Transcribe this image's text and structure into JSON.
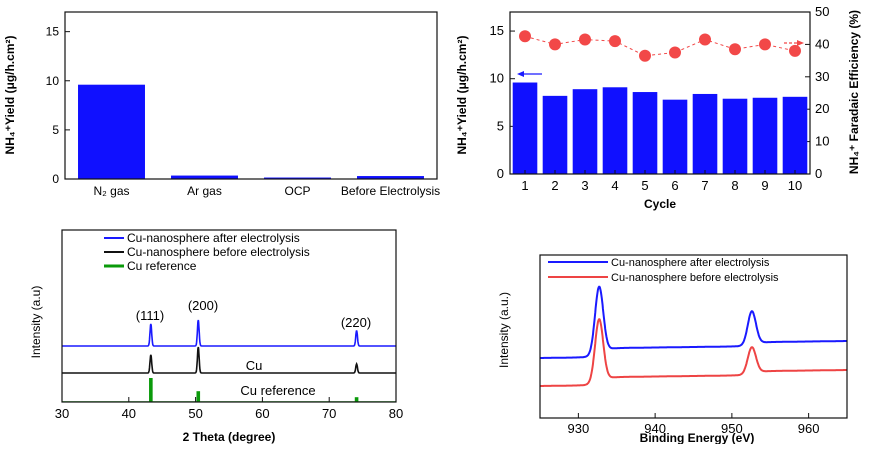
{
  "colors": {
    "bar": "#1010ff",
    "faradaic": "#f24848",
    "after": "#1a1aff",
    "before": "#111111",
    "reference": "#0a9a0a",
    "xps_before": "#ee4444",
    "axis": "#111111"
  },
  "chart_data": [
    {
      "id": "a",
      "type": "bar",
      "title": "",
      "categories": [
        "N₂ gas",
        "Ar gas",
        "OCP",
        "Before Electrolysis"
      ],
      "values": [
        9.6,
        0.35,
        0.15,
        0.3
      ],
      "xlabel": "",
      "ylabel": "NH₄⁺Yield (μg/h.cm²)",
      "ylim": [
        0,
        17
      ],
      "yticks": [
        "0",
        "5",
        "10",
        "15"
      ],
      "grid": false
    },
    {
      "id": "b",
      "type": "bar",
      "categories": [
        "1",
        "2",
        "3",
        "4",
        "5",
        "6",
        "7",
        "8",
        "9",
        "10"
      ],
      "xlabel": "Cycle",
      "ylabel": "NH₄⁺Yield (μg/h.cm²)",
      "ylim": [
        0,
        17
      ],
      "yticks": [
        "0",
        "5",
        "10",
        "15"
      ],
      "y2label": "NH₄⁺ Faradaic Efficiency (%)",
      "y2lim": [
        0,
        50
      ],
      "y2ticks": [
        "0",
        "10",
        "20",
        "30",
        "40",
        "50"
      ],
      "series": [
        {
          "axis": "left",
          "type": "bar",
          "values": [
            9.6,
            8.2,
            8.9,
            9.1,
            8.6,
            7.8,
            8.4,
            7.9,
            8.0,
            8.1
          ]
        },
        {
          "axis": "right",
          "type": "line-marker",
          "values": [
            42.5,
            40.0,
            41.5,
            41.0,
            36.5,
            37.5,
            41.5,
            38.5,
            40.0,
            38.0
          ]
        }
      ],
      "grid": false
    },
    {
      "id": "c",
      "type": "line",
      "xlabel": "2 Theta (degree)",
      "ylabel": "Intensity (a.u)",
      "xlim": [
        30,
        80
      ],
      "xticks": [
        "30",
        "40",
        "50",
        "60",
        "70",
        "80"
      ],
      "legend": {
        "placement": "top",
        "entries": [
          "Cu-nanosphere after electrolysis",
          "Cu-nanosphere before electrolysis",
          "Cu reference"
        ]
      },
      "annotations": [
        "(111)",
        "(200)",
        "(220)",
        "Cu",
        "Cu reference"
      ],
      "series": [
        {
          "name": "Cu-nanosphere after electrolysis",
          "peaks": [
            [
              43.3,
              0.85
            ],
            [
              50.4,
              1.0
            ],
            [
              74.1,
              0.6
            ]
          ]
        },
        {
          "name": "Cu-nanosphere before electrolysis",
          "peaks": [
            [
              43.3,
              0.7
            ],
            [
              50.4,
              1.0
            ],
            [
              74.1,
              0.35
            ]
          ]
        },
        {
          "name": "Cu reference",
          "sticks": [
            [
              43.3,
              1.0
            ],
            [
              50.4,
              0.45
            ],
            [
              74.1,
              0.2
            ]
          ]
        }
      ],
      "grid": false
    },
    {
      "id": "d",
      "type": "line",
      "xlabel": "Binding Energy (eV)",
      "ylabel": "Intensity (a.u.)",
      "xlim": [
        925,
        965
      ],
      "xticks": [
        "930",
        "940",
        "950",
        "960"
      ],
      "legend": {
        "placement": "top-left",
        "entries": [
          "Cu-nanosphere after electrolysis",
          "Cu-nanosphere before electrolysis"
        ]
      },
      "series": [
        {
          "name": "Cu-nanosphere after electrolysis",
          "peaks": [
            [
              932.7,
              1.0
            ],
            [
              952.6,
              0.5
            ]
          ]
        },
        {
          "name": "Cu-nanosphere before electrolysis",
          "peaks": [
            [
              932.7,
              1.0
            ],
            [
              952.6,
              0.42
            ]
          ]
        }
      ],
      "grid": false
    }
  ]
}
